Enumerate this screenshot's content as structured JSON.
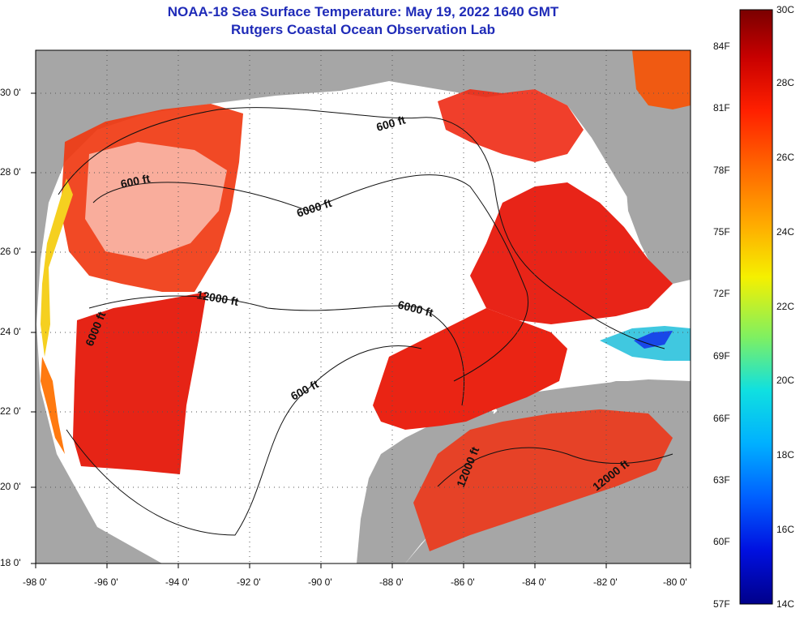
{
  "title": {
    "line1": "NOAA-18 Sea Surface Temperature:  May 19, 2022 1640 GMT",
    "line2": "Rutgers Coastal Ocean Observation Lab"
  },
  "axes": {
    "lat_labels": [
      "30 0'",
      "28 0'",
      "26 0'",
      "24 0'",
      "22 0'",
      "20 0'",
      "18 0'"
    ],
    "lon_labels": [
      "-98 0'",
      "-96 0'",
      "-94 0'",
      "-92 0'",
      "-90 0'",
      "-88 0'",
      "-86 0'",
      "-84 0'",
      "-82 0'",
      "-80 0'"
    ]
  },
  "contour_labels": [
    {
      "text": "600 ft"
    },
    {
      "text": "600 ft"
    },
    {
      "text": "6000 ft"
    },
    {
      "text": "12000 ft"
    },
    {
      "text": "6000 ft"
    },
    {
      "text": "6000 ft"
    },
    {
      "text": "600 ft"
    },
    {
      "text": "12000 ft"
    },
    {
      "text": "12000 ft"
    }
  ],
  "colorbar": {
    "top_label": "30C",
    "bottom_label": "14C",
    "celsius_labels": [
      "28C",
      "26C",
      "24C",
      "22C",
      "20C",
      "18C",
      "16C"
    ],
    "fahrenheit_labels": [
      "84F",
      "81F",
      "78F",
      "75F",
      "72F",
      "69F",
      "66F",
      "63F",
      "60F",
      "57F"
    ],
    "colors": [
      "#7a0000",
      "#d00000",
      "#ff2000",
      "#ff7000",
      "#ffb000",
      "#f0f000",
      "#90f060",
      "#20e0d0",
      "#00b0ff",
      "#0060ff",
      "#0000d0",
      "#00008a"
    ]
  },
  "colors": {
    "land": "#a6a6a6",
    "cloud": "#ffffff",
    "warm": "#f02010",
    "hot": "#d81010",
    "title": "#1f2bb8"
  }
}
